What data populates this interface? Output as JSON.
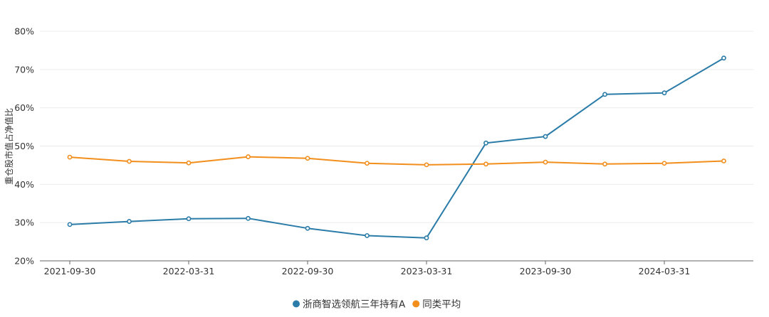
{
  "chart_data": {
    "type": "line",
    "ylabel": "重仓股市值占净值比",
    "ylim": [
      20,
      80
    ],
    "y_ticks": [
      "20%",
      "30%",
      "40%",
      "50%",
      "60%",
      "70%",
      "80%"
    ],
    "x": [
      "2021-09-30",
      "2021-12-31",
      "2022-03-31",
      "2022-06-30",
      "2022-09-30",
      "2022-12-31",
      "2023-03-31",
      "2023-06-30",
      "2023-09-30",
      "2023-12-31",
      "2024-03-31",
      "2024-06-30"
    ],
    "x_tick_labels": [
      "2021-09-30",
      "2022-03-31",
      "2022-09-30",
      "2023-03-31",
      "2023-09-30",
      "2024-03-31"
    ],
    "series": [
      {
        "name": "浙商智选领航三年持有A",
        "color": "#2b7ca8",
        "values": [
          29.5,
          30.3,
          31.0,
          31.1,
          28.5,
          26.6,
          26.0,
          50.8,
          52.5,
          63.5,
          63.9,
          73.0
        ]
      },
      {
        "name": "同类平均",
        "color": "#f28e1c",
        "values": [
          47.1,
          46.0,
          45.6,
          47.2,
          46.8,
          45.5,
          45.1,
          45.3,
          45.8,
          45.3,
          45.5,
          46.1
        ]
      }
    ],
    "grid": true,
    "legend_position": "bottom-center"
  }
}
